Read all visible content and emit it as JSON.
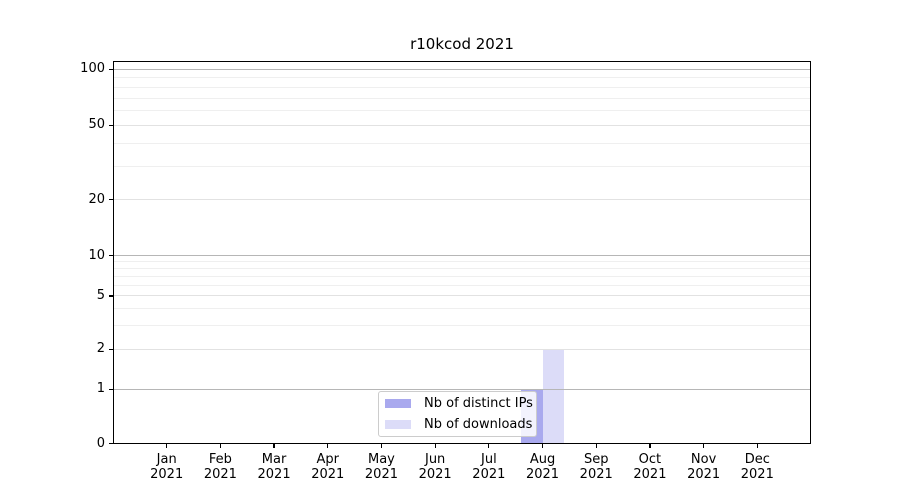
{
  "chart_data": {
    "type": "bar",
    "title": "r10kcod 2021",
    "categories": [
      "Jan 2021",
      "Feb 2021",
      "Mar 2021",
      "Apr 2021",
      "May 2021",
      "Jun 2021",
      "Jul 2021",
      "Aug 2021",
      "Sep 2021",
      "Oct 2021",
      "Nov 2021",
      "Dec 2021"
    ],
    "series": [
      {
        "name": "Nb of distinct IPs",
        "color": "#a9a9ee",
        "values": [
          0,
          0,
          0,
          0,
          0,
          0,
          0,
          1,
          0,
          0,
          0,
          0
        ]
      },
      {
        "name": "Nb of downloads",
        "color": "#dcdcf8",
        "values": [
          0,
          0,
          0,
          0,
          0,
          0,
          0,
          2,
          0,
          0,
          0,
          0
        ]
      }
    ],
    "xlabel": "",
    "ylabel": "",
    "yaxis": {
      "scale": "log-with-zero",
      "ticks": [
        0,
        1,
        2,
        5,
        10,
        20,
        50,
        100
      ],
      "decade_ticks": [
        1,
        10,
        100
      ],
      "minor_ticks": [
        3,
        4,
        6,
        7,
        8,
        9,
        30,
        40,
        60,
        70,
        80,
        90
      ],
      "ylim": [
        0,
        110
      ]
    },
    "grid": true,
    "legend_position": "lower center",
    "colors": {
      "grid_decade": "#b6b6b6",
      "grid_major": "#e2e2e2",
      "grid_minor": "#efefef",
      "spine": "#000000",
      "text": "#000000",
      "legend_border": "#cccccc",
      "legend_background": "#ffffff"
    }
  }
}
